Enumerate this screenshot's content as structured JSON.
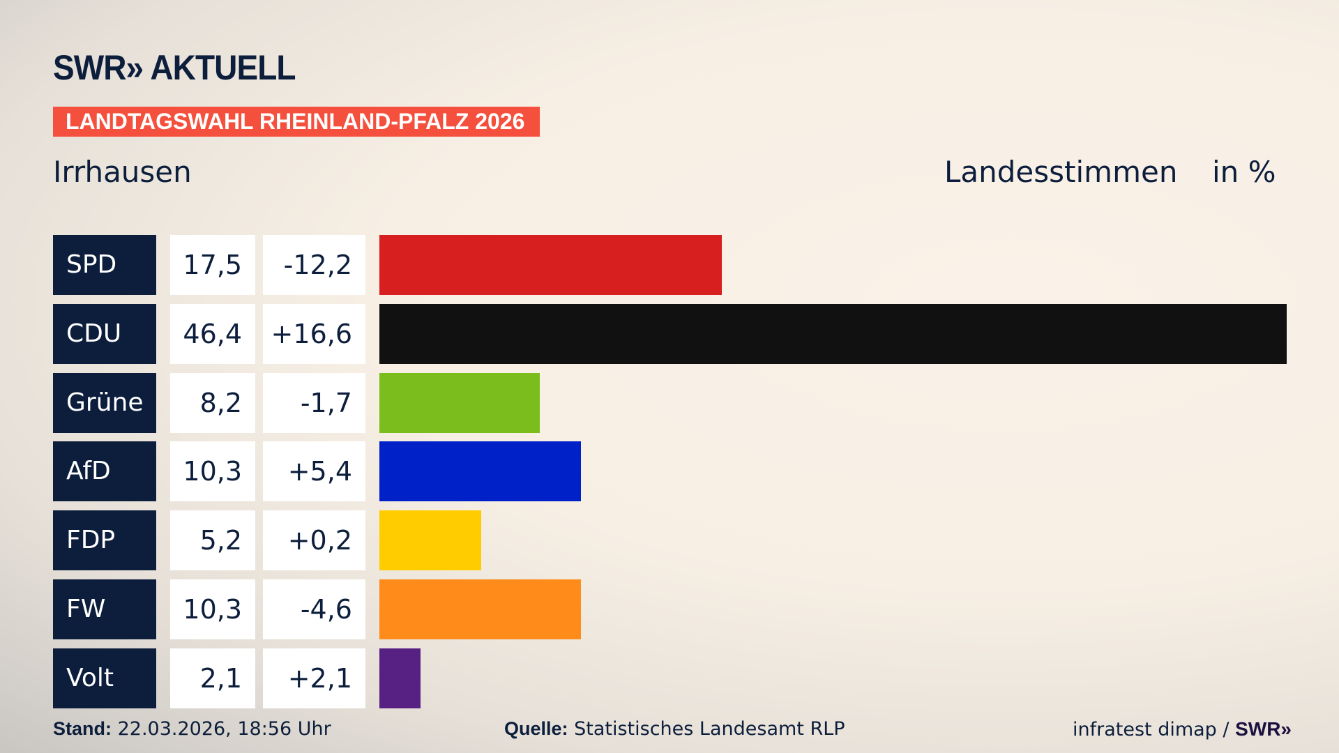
{
  "header": {
    "logo": "SWR» AKTUELL",
    "banner": "LANDTAGSWAHL RHEINLAND-PFALZ 2026",
    "place": "Irrhausen",
    "metric": "Landesstimmen",
    "unit": "in %"
  },
  "chart_data": {
    "type": "bar",
    "orientation": "horizontal",
    "categories": [
      "SPD",
      "CDU",
      "Grüne",
      "AfD",
      "FDP",
      "FW",
      "Volt"
    ],
    "values": [
      17.5,
      46.4,
      8.2,
      10.3,
      5.2,
      10.3,
      2.1
    ],
    "value_labels": [
      "17,5",
      "46,4",
      "8,2",
      "10,3",
      "5,2",
      "10,3",
      "2,1"
    ],
    "changes": [
      "-12,2",
      "+16,6",
      "-1,7",
      "+5,4",
      "+0,2",
      "-4,6",
      "+2,1"
    ],
    "colors": [
      "#d71f1f",
      "#111111",
      "#7abd1d",
      "#0021c8",
      "#ffcc00",
      "#ff8c1a",
      "#562183"
    ],
    "xlim": [
      0,
      46.4
    ],
    "grid": false
  },
  "footer": {
    "stand_label": "Stand:",
    "stand_value": "22.03.2026, 18:56 Uhr",
    "source_label": "Quelle:",
    "source_value": "Statistisches Landesamt RLP",
    "credit": "infratest dimap /",
    "credit_logo": "SWR»"
  }
}
